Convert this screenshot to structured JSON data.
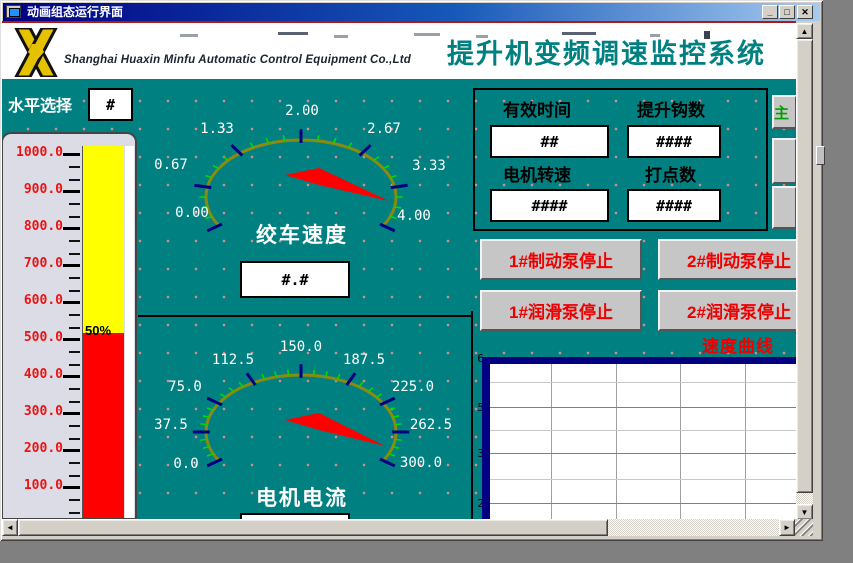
{
  "window": {
    "title": "动画组态运行界面",
    "minimize_glyph": "_",
    "maximize_glyph": "□",
    "close_glyph": "✕"
  },
  "header": {
    "company_name": "Shanghai Huaxin Minfu Automatic Control Equipment Co.,Ltd",
    "system_title": "提升机变频调速监控系统",
    "system_title_color": "#008080"
  },
  "level_select": {
    "label": "水平选择",
    "value": "#"
  },
  "level_gauge": {
    "scale_labels": [
      "1000.0",
      "900.0",
      "800.0",
      "700.0",
      "600.0",
      "500.0",
      "400.0",
      "300.0",
      "200.0",
      "100.0"
    ],
    "percent_label": "50%",
    "upper_color": "#ffff00",
    "lower_color": "#ff0000"
  },
  "speed_gauge": {
    "title": "绞车速度",
    "value_display": "#.#",
    "tick_labels": [
      "0.00",
      "0.67",
      "1.33",
      "2.00",
      "2.67",
      "3.33",
      "4.00"
    ],
    "needle_color": "#ff0000",
    "needle_points_near": "4.00"
  },
  "current_gauge": {
    "title": "电机电流",
    "tick_labels": [
      "0.0",
      "37.5",
      "75.0",
      "112.5",
      "150.0",
      "187.5",
      "225.0",
      "262.5",
      "300.0"
    ],
    "needle_color": "#ff0000",
    "needle_points_near": "300.0"
  },
  "stats": {
    "fields": [
      {
        "label": "有效时间",
        "value": "##"
      },
      {
        "label": "提升钩数",
        "value": "####"
      },
      {
        "label": "电机转速",
        "value": "####"
      },
      {
        "label": "打点数",
        "value": "####"
      }
    ]
  },
  "pump_buttons": [
    {
      "label": "1#制动泵停止"
    },
    {
      "label": "2#制动泵停止"
    },
    {
      "label": "1#润滑泵停止"
    },
    {
      "label": "2#润滑泵停止"
    }
  ],
  "side_buttons": {
    "partial_text": "主"
  },
  "trend_chart": {
    "title": "速度曲线",
    "y_axis_labels": [
      "6",
      "5",
      "3",
      "2"
    ],
    "plot_empty": true
  }
}
